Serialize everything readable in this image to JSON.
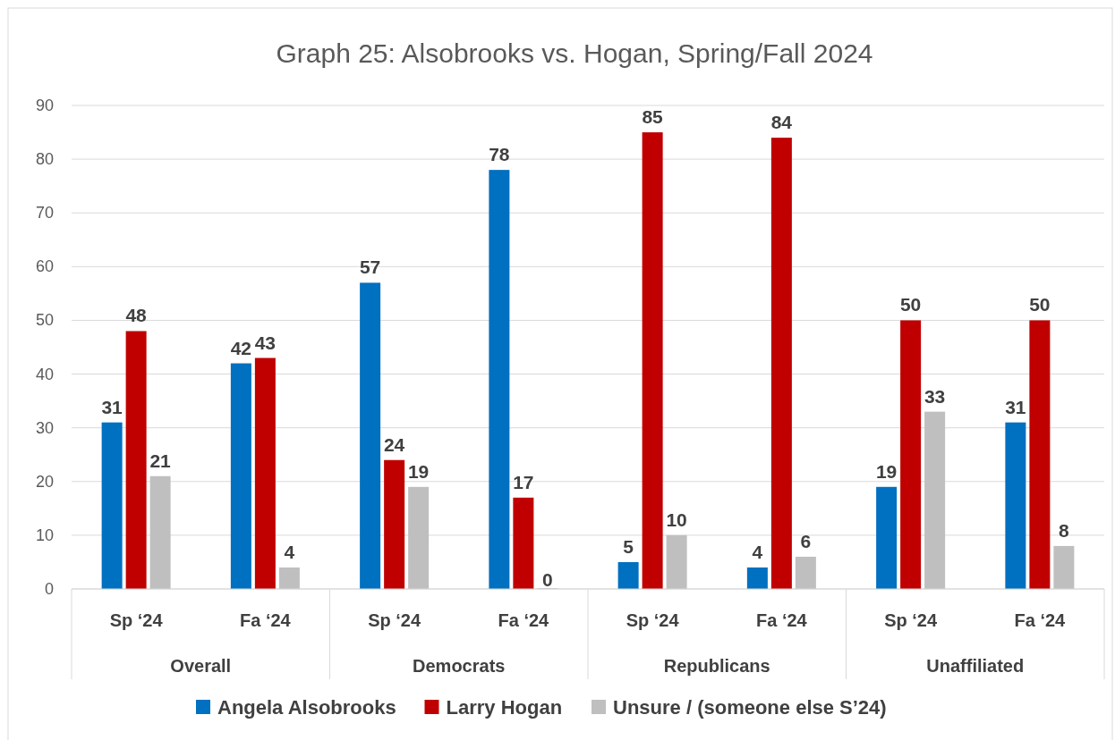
{
  "chart_data": {
    "type": "bar",
    "title": "Graph 25: Alsobrooks vs. Hogan, Spring/Fall 2024",
    "categories": [
      "Sp ‘24",
      "Fa ‘24",
      "Sp ‘24",
      "Fa ‘24",
      "Sp ‘24",
      "Fa ‘24",
      "Sp ‘24",
      "Fa ‘24"
    ],
    "annotations": [
      "Overall",
      "Democrats",
      "Republicans",
      "Unaffiliated"
    ],
    "series": [
      {
        "name": "Angela Alsobrooks",
        "color": "#0070c0",
        "values": [
          31,
          42,
          57,
          78,
          5,
          4,
          19,
          31
        ]
      },
      {
        "name": "Larry Hogan",
        "color": "#c00000",
        "values": [
          48,
          43,
          24,
          17,
          85,
          84,
          50,
          50
        ]
      },
      {
        "name": "Unsure / (someone else S’24)",
        "color": "#bfbfbf",
        "values": [
          21,
          4,
          19,
          0,
          10,
          6,
          33,
          8
        ]
      }
    ],
    "ylim": [
      0,
      90
    ],
    "yticks": [
      0,
      10,
      20,
      30,
      40,
      50,
      60,
      70,
      80,
      90
    ],
    "grid": "y",
    "legend": "bottom",
    "data_labels": true
  }
}
